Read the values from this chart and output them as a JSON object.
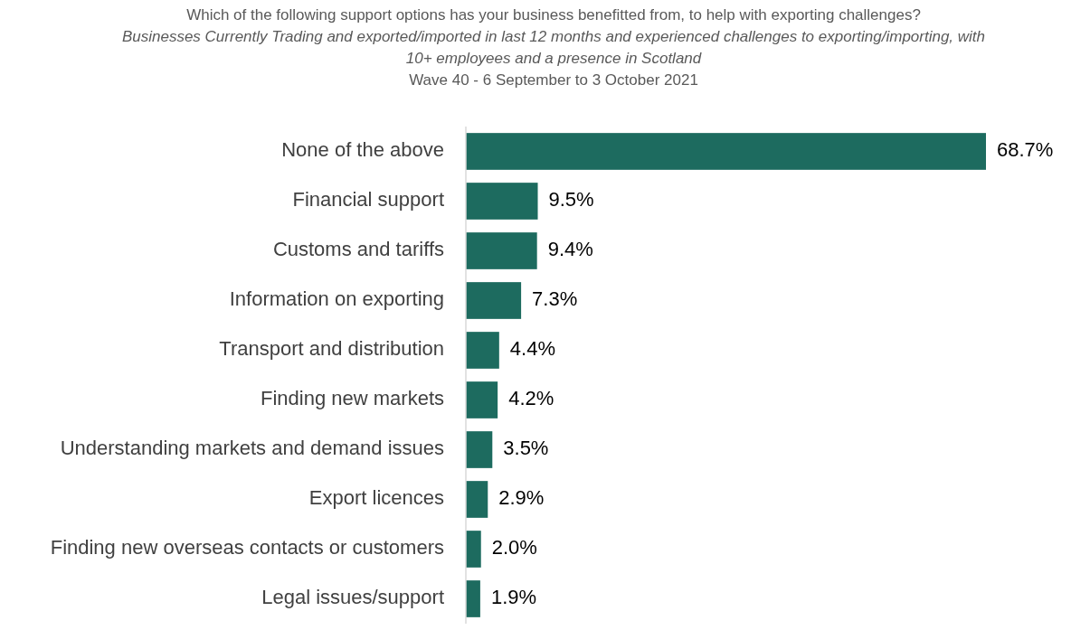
{
  "chart_data": {
    "type": "bar",
    "orientation": "horizontal",
    "title": "Which of the following support options has your business benefitted from, to help with exporting challenges?",
    "subtitle": "Businesses  Currently Trading and exported/imported in last 12 months and experienced challenges to exporting/importing, with 10+ employees and a presence in Scotland",
    "annotations": [
      "Wave 40 - 6 September to 3 October 2021"
    ],
    "categories": [
      "None of the above",
      "Financial support",
      "Customs and tariffs",
      "Information on exporting",
      "Transport and distribution",
      "Finding new markets",
      "Understanding markets and demand issues",
      "Export licences",
      "Finding new overseas contacts or customers",
      "Legal issues/support"
    ],
    "values": [
      68.7,
      9.5,
      9.4,
      7.3,
      4.4,
      4.2,
      3.5,
      2.9,
      2.0,
      1.9
    ],
    "value_labels": [
      "68.7%",
      "9.5%",
      "9.4%",
      "7.3%",
      "4.4%",
      "4.2%",
      "3.5%",
      "2.9%",
      "2.0%",
      "1.9%"
    ],
    "color": "#1d6b5f"
  }
}
